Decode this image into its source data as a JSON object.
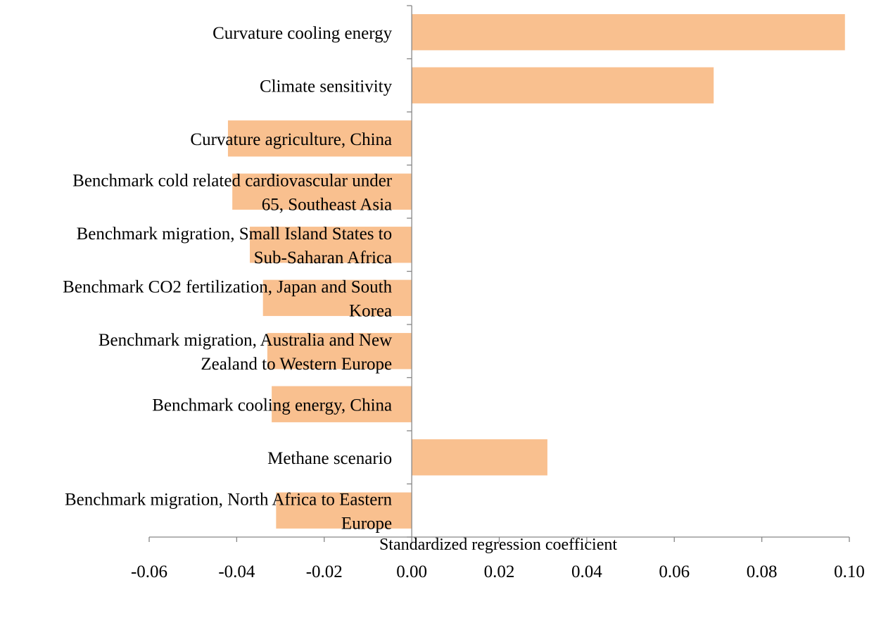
{
  "chart_data": {
    "type": "bar",
    "orientation": "horizontal",
    "title": "",
    "xlabel": "Standardized regression coefficient",
    "ylabel": "",
    "xlim": [
      -0.06,
      0.1
    ],
    "xticks": [
      -0.06,
      -0.04,
      -0.02,
      0.0,
      0.02,
      0.04,
      0.06,
      0.08,
      0.1
    ],
    "xtick_labels": [
      "-0.06",
      "-0.04",
      "-0.02",
      "0.00",
      "0.02",
      "0.04",
      "0.06",
      "0.08",
      "0.10"
    ],
    "grid": false,
    "legend": "none",
    "bar_color": "#F9C08F",
    "categories": [
      {
        "lines": [
          "Curvature cooling energy"
        ]
      },
      {
        "lines": [
          "Climate sensitivity"
        ]
      },
      {
        "lines": [
          "Curvature agriculture, China"
        ]
      },
      {
        "lines": [
          "Benchmark cold related cardiovascular under",
          "65, Southeast Asia"
        ]
      },
      {
        "lines": [
          "Benchmark migration, Small Island States to",
          "Sub-Saharan Africa"
        ]
      },
      {
        "lines": [
          "Benchmark CO2 fertilization, Japan and South",
          "Korea"
        ]
      },
      {
        "lines": [
          "Benchmark migration, Australia and New",
          "Zealand to Western Europe"
        ]
      },
      {
        "lines": [
          "Benchmark cooling energy, China"
        ]
      },
      {
        "lines": [
          "Methane scenario"
        ]
      },
      {
        "lines": [
          "Benchmark migration, North Africa to Eastern",
          "Europe"
        ]
      }
    ],
    "values": [
      0.099,
      0.069,
      -0.042,
      -0.041,
      -0.037,
      -0.034,
      -0.033,
      -0.032,
      0.031,
      -0.031
    ]
  }
}
